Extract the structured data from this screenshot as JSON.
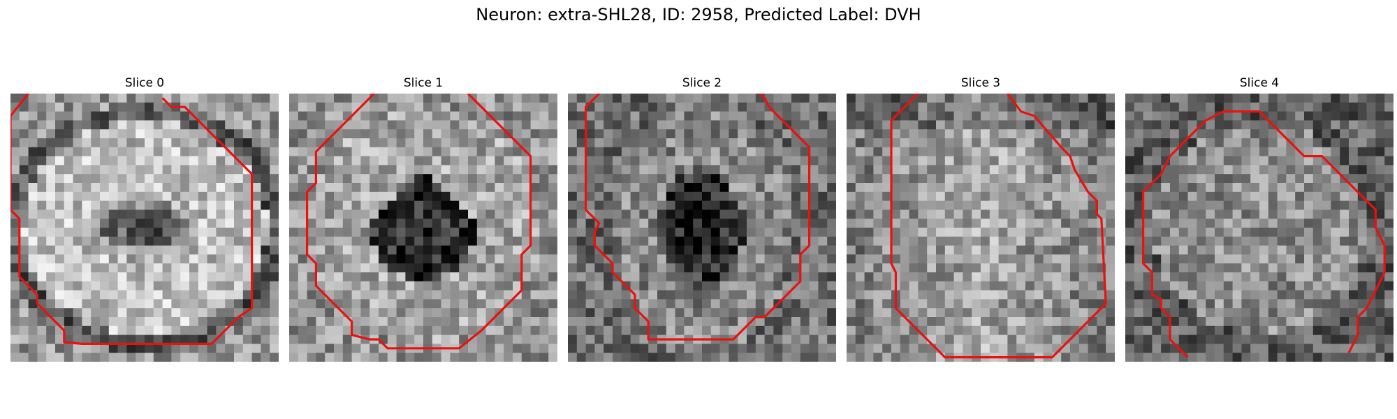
{
  "figure": {
    "title": "Neuron: extra-SHL28, ID: 2958, Predicted Label: DVH"
  },
  "slices": [
    {
      "label": "Slice 0",
      "pattern": "ring"
    },
    {
      "label": "Slice 1",
      "pattern": "triangle-dark"
    },
    {
      "label": "Slice 2",
      "pattern": "central-dark"
    },
    {
      "label": "Slice 3",
      "pattern": "noisy-bright"
    },
    {
      "label": "Slice 4",
      "pattern": "noisy-mid"
    }
  ],
  "colors": {
    "contour": "#e8120f"
  }
}
